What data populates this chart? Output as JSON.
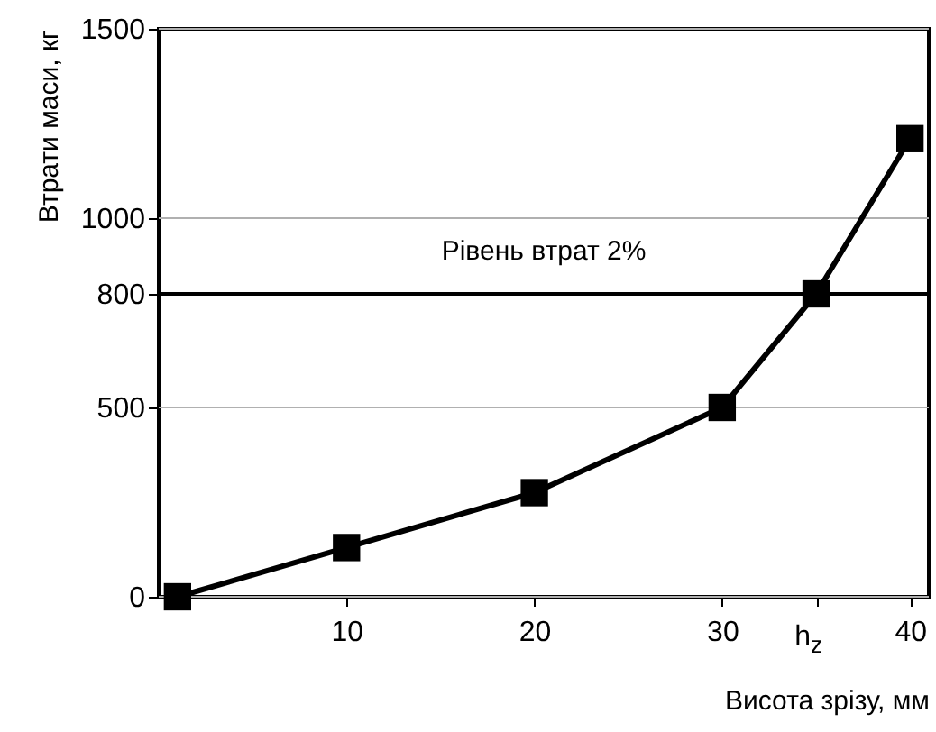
{
  "chart_data": {
    "type": "line",
    "xlabel": "Висота зрізу, мм",
    "ylabel": "Втрати маси, кг",
    "x": [
      1,
      10,
      20,
      30,
      35,
      40
    ],
    "series": [
      {
        "color": "#000000",
        "values": [
          0,
          130,
          275,
          500,
          800,
          1210
        ]
      }
    ],
    "xlim": [
      0,
      41
    ],
    "xticks": [
      10,
      20,
      30,
      {
        "value": 35,
        "label": "h$_{z}$"
      },
      40
    ],
    "ylim": [
      0,
      1500
    ],
    "yticks": [
      0,
      500,
      800,
      1000,
      1500
    ],
    "ref_lines": [
      {
        "axis": "y",
        "value": 800,
        "label": "Рівень втрат 2%",
        "color": "#000000"
      }
    ],
    "grid": true,
    "marker": "square",
    "line_style": "solid"
  }
}
